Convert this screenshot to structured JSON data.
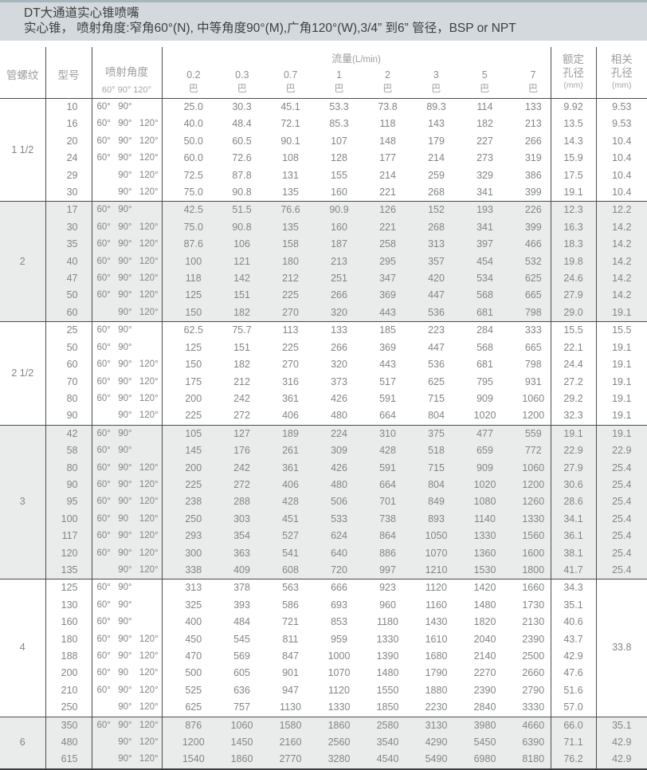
{
  "banner": {
    "title": "DT大通道实心锥喷嘴",
    "subtitle": "实心锥， 喷射角度:窄角60°(N), 中等角度90°(M),广角120°(W),3/4” 到6” 管径，BSP or NPT"
  },
  "colors": {
    "banner_bg": "#d3d9dd",
    "stripe": "#eaecec",
    "border": "#4a4c4d"
  },
  "header": {
    "pipe_thread": "管螺纹",
    "model": "型号",
    "spray_angle": "喷射角度",
    "spray_angle_sub": "60° 90° 120°",
    "flow_label": "流量",
    "flow_unit": "(L/min)",
    "pressures": [
      "0.2",
      "0.3",
      "0.7",
      "1",
      "2",
      "3",
      "5",
      "7"
    ],
    "pressure_unit": "巴",
    "rated_line1": "额定",
    "rated_line2": "孔径",
    "rated_unit": "(mm)",
    "related_line1": "相关",
    "related_line2": "孔径",
    "related_unit": "(mm)"
  },
  "groups": [
    {
      "thread": "1 1/2",
      "shaded": false,
      "rows": [
        {
          "model": "10",
          "angles": [
            "60°",
            "90°",
            ""
          ],
          "flows": [
            "25.0",
            "30.3",
            "45.1",
            "53.3",
            "73.8",
            "89.3",
            "114",
            "133"
          ],
          "rated": "9.92",
          "related": "9.53"
        },
        {
          "model": "16",
          "angles": [
            "60°",
            "90°",
            "120°"
          ],
          "flows": [
            "40.0",
            "48.4",
            "72.1",
            "85.3",
            "118",
            "143",
            "182",
            "213"
          ],
          "rated": "13.5",
          "related": "9.53"
        },
        {
          "model": "20",
          "angles": [
            "60°",
            "90°",
            "120°"
          ],
          "flows": [
            "50.0",
            "60.5",
            "90.1",
            "107",
            "148",
            "179",
            "227",
            "266"
          ],
          "rated": "14.3",
          "related": "10.4"
        },
        {
          "model": "24",
          "angles": [
            "60°",
            "90°",
            "120°"
          ],
          "flows": [
            "60.0",
            "72.6",
            "108",
            "128",
            "177",
            "214",
            "273",
            "319"
          ],
          "rated": "15.9",
          "related": "10.4"
        },
        {
          "model": "29",
          "angles": [
            "",
            "90°",
            "120°"
          ],
          "flows": [
            "72.5",
            "87.8",
            "131",
            "155",
            "214",
            "259",
            "329",
            "386"
          ],
          "rated": "17.5",
          "related": "10.4"
        },
        {
          "model": "30",
          "angles": [
            "",
            "90°",
            "120°"
          ],
          "flows": [
            "75.0",
            "90.8",
            "135",
            "160",
            "221",
            "268",
            "341",
            "399"
          ],
          "rated": "19.1",
          "related": "10.4"
        }
      ]
    },
    {
      "thread": "2",
      "shaded": true,
      "rows": [
        {
          "model": "17",
          "angles": [
            "60°",
            "90°",
            ""
          ],
          "flows": [
            "42.5",
            "51.5",
            "76.6",
            "90.9",
            "126",
            "152",
            "193",
            "226"
          ],
          "rated": "12.3",
          "related": "12.2"
        },
        {
          "model": "30",
          "angles": [
            "60°",
            "90°",
            "120°"
          ],
          "flows": [
            "75.0",
            "90.8",
            "135",
            "160",
            "221",
            "268",
            "341",
            "399"
          ],
          "rated": "16.3",
          "related": "14.2"
        },
        {
          "model": "35",
          "angles": [
            "60°",
            "90°",
            "120°"
          ],
          "flows": [
            "87.6",
            "106",
            "158",
            "187",
            "258",
            "313",
            "397",
            "466"
          ],
          "rated": "18.3",
          "related": "14.2"
        },
        {
          "model": "40",
          "angles": [
            "60°",
            "90°",
            "120°"
          ],
          "flows": [
            "100",
            "121",
            "180",
            "213",
            "295",
            "357",
            "454",
            "532"
          ],
          "rated": "19.8",
          "related": "14.2"
        },
        {
          "model": "47",
          "angles": [
            "60°",
            "90°",
            "120°"
          ],
          "flows": [
            "118",
            "142",
            "212",
            "251",
            "347",
            "420",
            "534",
            "625"
          ],
          "rated": "24.6",
          "related": "14.2"
        },
        {
          "model": "50",
          "angles": [
            "60°",
            "90°",
            "120°"
          ],
          "flows": [
            "125",
            "151",
            "225",
            "266",
            "369",
            "447",
            "568",
            "665"
          ],
          "rated": "27.9",
          "related": "14.2"
        },
        {
          "model": "60",
          "angles": [
            "",
            "90°",
            "120°"
          ],
          "flows": [
            "150",
            "182",
            "270",
            "320",
            "443",
            "536",
            "681",
            "798"
          ],
          "rated": "29.0",
          "related": "19.1"
        }
      ]
    },
    {
      "thread": "2 1/2",
      "shaded": false,
      "rows": [
        {
          "model": "25",
          "angles": [
            "60°",
            "90°",
            ""
          ],
          "flows": [
            "62.5",
            "75.7",
            "113",
            "133",
            "185",
            "223",
            "284",
            "333"
          ],
          "rated": "15.5",
          "related": "15.5"
        },
        {
          "model": "50",
          "angles": [
            "60°",
            "90°",
            ""
          ],
          "flows": [
            "125",
            "151",
            "225",
            "266",
            "369",
            "447",
            "568",
            "665"
          ],
          "rated": "22.1",
          "related": "19.1"
        },
        {
          "model": "60",
          "angles": [
            "60°",
            "90°",
            "120°"
          ],
          "flows": [
            "150",
            "182",
            "270",
            "320",
            "443",
            "536",
            "681",
            "798"
          ],
          "rated": "24.4",
          "related": "19.1"
        },
        {
          "model": "70",
          "angles": [
            "60°",
            "90°",
            "120°"
          ],
          "flows": [
            "175",
            "212",
            "316",
            "373",
            "517",
            "625",
            "795",
            "931"
          ],
          "rated": "27.2",
          "related": "19.1"
        },
        {
          "model": "80",
          "angles": [
            "60°",
            "90°",
            "120°"
          ],
          "flows": [
            "200",
            "242",
            "361",
            "426",
            "591",
            "715",
            "909",
            "1060"
          ],
          "rated": "29.2",
          "related": "19.1"
        },
        {
          "model": "90",
          "angles": [
            "",
            "90°",
            "120°"
          ],
          "flows": [
            "225",
            "272",
            "406",
            "480",
            "664",
            "804",
            "1020",
            "1200"
          ],
          "rated": "32.3",
          "related": "19.1"
        }
      ]
    },
    {
      "thread": "3",
      "shaded": true,
      "rows": [
        {
          "model": "42",
          "angles": [
            "60°",
            "90°",
            ""
          ],
          "flows": [
            "105",
            "127",
            "189",
            "224",
            "310",
            "375",
            "477",
            "559"
          ],
          "rated": "19.1",
          "related": "19.1"
        },
        {
          "model": "58",
          "angles": [
            "60°",
            "90°",
            ""
          ],
          "flows": [
            "145",
            "176",
            "261",
            "309",
            "428",
            "518",
            "659",
            "772"
          ],
          "rated": "22.9",
          "related": "22.9"
        },
        {
          "model": "80",
          "angles": [
            "60°",
            "90°",
            "120°"
          ],
          "flows": [
            "200",
            "242",
            "361",
            "426",
            "591",
            "715",
            "909",
            "1060"
          ],
          "rated": "27.9",
          "related": "25.4"
        },
        {
          "model": "90",
          "angles": [
            "60°",
            "90°",
            "120°"
          ],
          "flows": [
            "225",
            "272",
            "406",
            "480",
            "664",
            "804",
            "1020",
            "1200"
          ],
          "rated": "30.6",
          "related": "25.4"
        },
        {
          "model": "95",
          "angles": [
            "60°",
            "90°",
            "120°"
          ],
          "flows": [
            "238",
            "288",
            "428",
            "506",
            "701",
            "849",
            "1080",
            "1260"
          ],
          "rated": "28.6",
          "related": "25.4"
        },
        {
          "model": "100",
          "angles": [
            "60°",
            "90",
            "120°"
          ],
          "flows": [
            "250",
            "303",
            "451",
            "533",
            "738",
            "893",
            "1140",
            "1330"
          ],
          "rated": "34.1",
          "related": "25.4"
        },
        {
          "model": "117",
          "angles": [
            "60°",
            "90°",
            "120°"
          ],
          "flows": [
            "293",
            "354",
            "527",
            "624",
            "864",
            "1050",
            "1330",
            "1560"
          ],
          "rated": "36.1",
          "related": "25.4"
        },
        {
          "model": "120",
          "angles": [
            "60°",
            "90°",
            "120°"
          ],
          "flows": [
            "300",
            "363",
            "541",
            "640",
            "886",
            "1070",
            "1360",
            "1600"
          ],
          "rated": "38.1",
          "related": "25.4"
        },
        {
          "model": "135",
          "angles": [
            "",
            "90°",
            "120°"
          ],
          "flows": [
            "338",
            "409",
            "608",
            "720",
            "997",
            "1210",
            "1530",
            "1800"
          ],
          "rated": "41.7",
          "related": "25.4"
        }
      ]
    },
    {
      "thread": "4",
      "shaded": false,
      "related_merged": "33.8",
      "rows": [
        {
          "model": "125",
          "angles": [
            "60°",
            "90°",
            ""
          ],
          "flows": [
            "313",
            "378",
            "563",
            "666",
            "923",
            "1120",
            "1420",
            "1660"
          ],
          "rated": "34.3"
        },
        {
          "model": "130",
          "angles": [
            "60°",
            "90°",
            ""
          ],
          "flows": [
            "325",
            "393",
            "586",
            "693",
            "960",
            "1160",
            "1480",
            "1730"
          ],
          "rated": "35.1"
        },
        {
          "model": "160",
          "angles": [
            "60°",
            "90°",
            ""
          ],
          "flows": [
            "400",
            "484",
            "721",
            "853",
            "1180",
            "1430",
            "1820",
            "2130"
          ],
          "rated": "40.6"
        },
        {
          "model": "180",
          "angles": [
            "60°",
            "90°",
            "120°"
          ],
          "flows": [
            "450",
            "545",
            "811",
            "959",
            "1330",
            "1610",
            "2040",
            "2390"
          ],
          "rated": "43.7"
        },
        {
          "model": "188",
          "angles": [
            "60°",
            "90°",
            "120°"
          ],
          "flows": [
            "470",
            "569",
            "847",
            "1000",
            "1390",
            "1680",
            "2140",
            "2500"
          ],
          "rated": "42.9"
        },
        {
          "model": "200",
          "angles": [
            "60°",
            "90",
            "120°"
          ],
          "flows": [
            "500",
            "605",
            "901",
            "1070",
            "1480",
            "1790",
            "2270",
            "2660"
          ],
          "rated": "47.6"
        },
        {
          "model": "210",
          "angles": [
            "60°",
            "90°",
            "120°"
          ],
          "flows": [
            "525",
            "636",
            "947",
            "1120",
            "1550",
            "1880",
            "2390",
            "2790"
          ],
          "rated": "51.6"
        },
        {
          "model": "250",
          "angles": [
            "",
            "90°",
            "120°"
          ],
          "flows": [
            "625",
            "757",
            "1130",
            "1330",
            "1850",
            "2230",
            "2840",
            "3330"
          ],
          "rated": "57.0"
        }
      ]
    },
    {
      "thread": "6",
      "shaded": true,
      "rows": [
        {
          "model": "350",
          "angles": [
            "60°",
            "90°",
            "120°"
          ],
          "flows": [
            "876",
            "1060",
            "1580",
            "1860",
            "2580",
            "3130",
            "3980",
            "4660"
          ],
          "rated": "66.0",
          "related": "35.1"
        },
        {
          "model": "480",
          "angles": [
            "",
            "90°",
            "120°"
          ],
          "flows": [
            "1200",
            "1450",
            "2160",
            "2560",
            "3540",
            "4290",
            "5450",
            "6390"
          ],
          "rated": "71.1",
          "related": "42.9"
        },
        {
          "model": "615",
          "angles": [
            "",
            "90°",
            "120°"
          ],
          "flows": [
            "1540",
            "1860",
            "2770",
            "3280",
            "4540",
            "5490",
            "6980",
            "8180"
          ],
          "rated": "76.2",
          "related": "42.9"
        }
      ]
    }
  ]
}
